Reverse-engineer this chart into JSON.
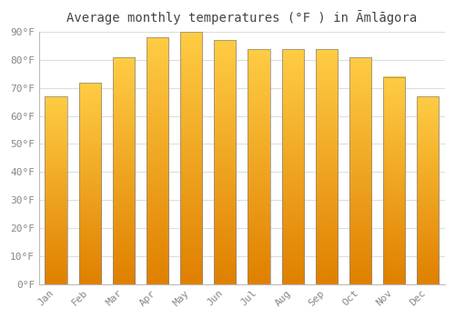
{
  "title": "Average monthly temperatures (°F ) in Āmlāgora",
  "months": [
    "Jan",
    "Feb",
    "Mar",
    "Apr",
    "May",
    "Jun",
    "Jul",
    "Aug",
    "Sep",
    "Oct",
    "Nov",
    "Dec"
  ],
  "temperatures": [
    67,
    72,
    81,
    88,
    90,
    87,
    84,
    84,
    84,
    81,
    74,
    67
  ],
  "bar_color_light": "#FFCC44",
  "bar_color_dark": "#E08000",
  "bar_edge_color": "#888888",
  "background_color": "#FFFFFF",
  "grid_color": "#DDDDDD",
  "title_color": "#444444",
  "tick_label_color": "#888888",
  "ylim": [
    0,
    90
  ],
  "yticks": [
    0,
    10,
    20,
    30,
    40,
    50,
    60,
    70,
    80,
    90
  ],
  "ytick_labels": [
    "0°F",
    "10°F",
    "20°F",
    "30°F",
    "40°F",
    "50°F",
    "60°F",
    "70°F",
    "80°F",
    "90°F"
  ],
  "title_fontsize": 10,
  "tick_fontsize": 8
}
